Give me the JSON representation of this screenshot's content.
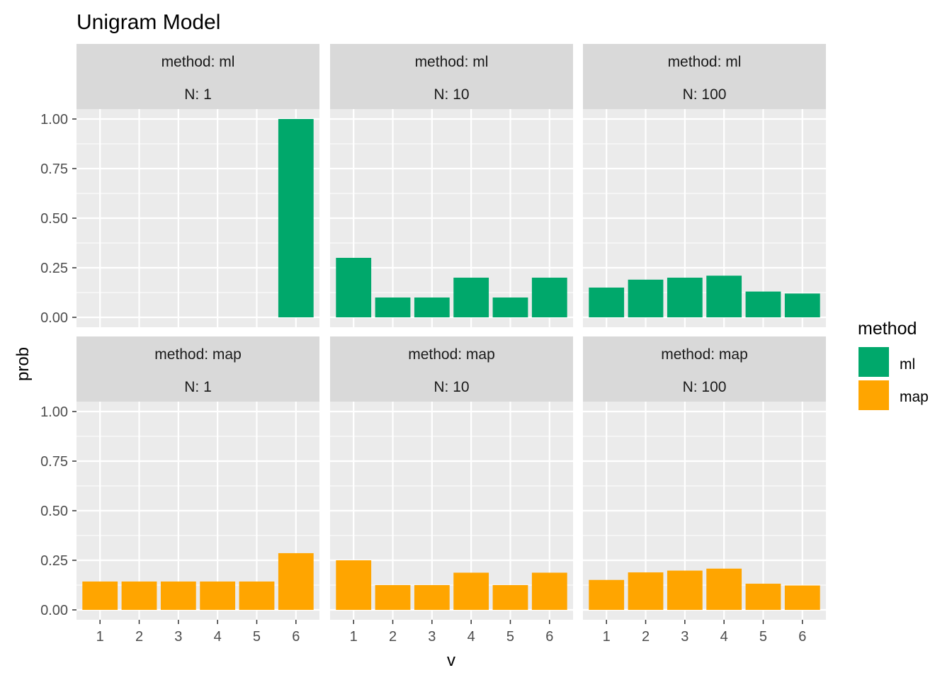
{
  "chart_data": {
    "type": "bar",
    "title": "Unigram Model",
    "xlabel": "v",
    "ylabel": "prob",
    "ylim": [
      0,
      1
    ],
    "y_ticks": [
      "0.00",
      "0.25",
      "0.50",
      "0.75",
      "1.00"
    ],
    "y_tick_values": [
      0,
      0.25,
      0.5,
      0.75,
      1
    ],
    "categories": [
      "1",
      "2",
      "3",
      "4",
      "5",
      "6"
    ],
    "grid": true,
    "legend": {
      "title": "method",
      "position": "right",
      "entries": [
        {
          "label": "ml",
          "color": "#00A86B"
        },
        {
          "label": "map",
          "color": "#FFA500"
        }
      ]
    },
    "panels": [
      {
        "row": 0,
        "col": 0,
        "strip_method": "method: ml",
        "strip_n": "N: 1",
        "method": "ml",
        "values": [
          0,
          0,
          0,
          0,
          0,
          1.0
        ]
      },
      {
        "row": 0,
        "col": 1,
        "strip_method": "method: ml",
        "strip_n": "N: 10",
        "method": "ml",
        "values": [
          0.3,
          0.1,
          0.1,
          0.2,
          0.1,
          0.2
        ]
      },
      {
        "row": 0,
        "col": 2,
        "strip_method": "method: ml",
        "strip_n": "N: 100",
        "method": "ml",
        "values": [
          0.15,
          0.19,
          0.2,
          0.21,
          0.13,
          0.12
        ]
      },
      {
        "row": 1,
        "col": 0,
        "strip_method": "method: map",
        "strip_n": "N: 1",
        "method": "map",
        "values": [
          0.143,
          0.143,
          0.143,
          0.143,
          0.143,
          0.286
        ]
      },
      {
        "row": 1,
        "col": 1,
        "strip_method": "method: map",
        "strip_n": "N: 10",
        "method": "map",
        "values": [
          0.25,
          0.125,
          0.125,
          0.1875,
          0.125,
          0.1875
        ]
      },
      {
        "row": 1,
        "col": 2,
        "strip_method": "method: map",
        "strip_n": "N: 100",
        "method": "map",
        "values": [
          0.151,
          0.189,
          0.198,
          0.208,
          0.132,
          0.123
        ]
      }
    ]
  },
  "colors": {
    "panel_bg": "#EBEBEB",
    "strip_bg": "#D9D9D9",
    "grid": "#FFFFFF",
    "axis_text": "#4D4D4D",
    "ml": "#00A86B",
    "map": "#FFA500"
  }
}
